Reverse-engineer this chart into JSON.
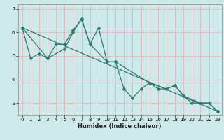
{
  "xlabel": "Humidex (Indice chaleur)",
  "background_color": "#cee9e9",
  "grid_color": "#e8b4b8",
  "line_color": "#2d7a6e",
  "xlim": [
    -0.5,
    23.5
  ],
  "ylim": [
    2.5,
    7.2
  ],
  "yticks": [
    3,
    4,
    5,
    6,
    7
  ],
  "xticks": [
    0,
    1,
    2,
    3,
    4,
    5,
    6,
    7,
    8,
    9,
    10,
    11,
    12,
    13,
    14,
    15,
    16,
    17,
    18,
    19,
    20,
    21,
    22,
    23
  ],
  "line1_x": [
    0,
    1,
    2,
    3,
    4,
    5,
    6,
    7,
    8,
    9,
    10,
    11,
    12,
    13,
    14,
    15,
    16,
    17,
    18,
    19,
    20,
    21,
    22,
    23
  ],
  "line1_y": [
    6.2,
    4.9,
    5.1,
    4.9,
    5.5,
    5.5,
    6.1,
    6.55,
    5.5,
    6.2,
    4.75,
    4.75,
    3.6,
    3.2,
    3.6,
    3.85,
    3.6,
    3.6,
    3.75,
    3.3,
    3.0,
    3.0,
    3.0,
    2.65
  ],
  "line2_x": [
    0,
    3,
    5,
    6,
    7,
    8,
    10,
    11,
    15,
    17,
    18,
    19,
    21,
    22,
    23
  ],
  "line2_y": [
    6.2,
    4.9,
    5.3,
    6.0,
    6.6,
    5.5,
    4.75,
    4.75,
    3.85,
    3.6,
    3.75,
    3.3,
    3.0,
    3.0,
    2.65
  ],
  "line3_x": [
    0,
    23
  ],
  "line3_y": [
    6.2,
    2.65
  ],
  "marker_size": 2.5,
  "line_width": 0.9,
  "tick_fontsize": 5,
  "xlabel_fontsize": 6
}
